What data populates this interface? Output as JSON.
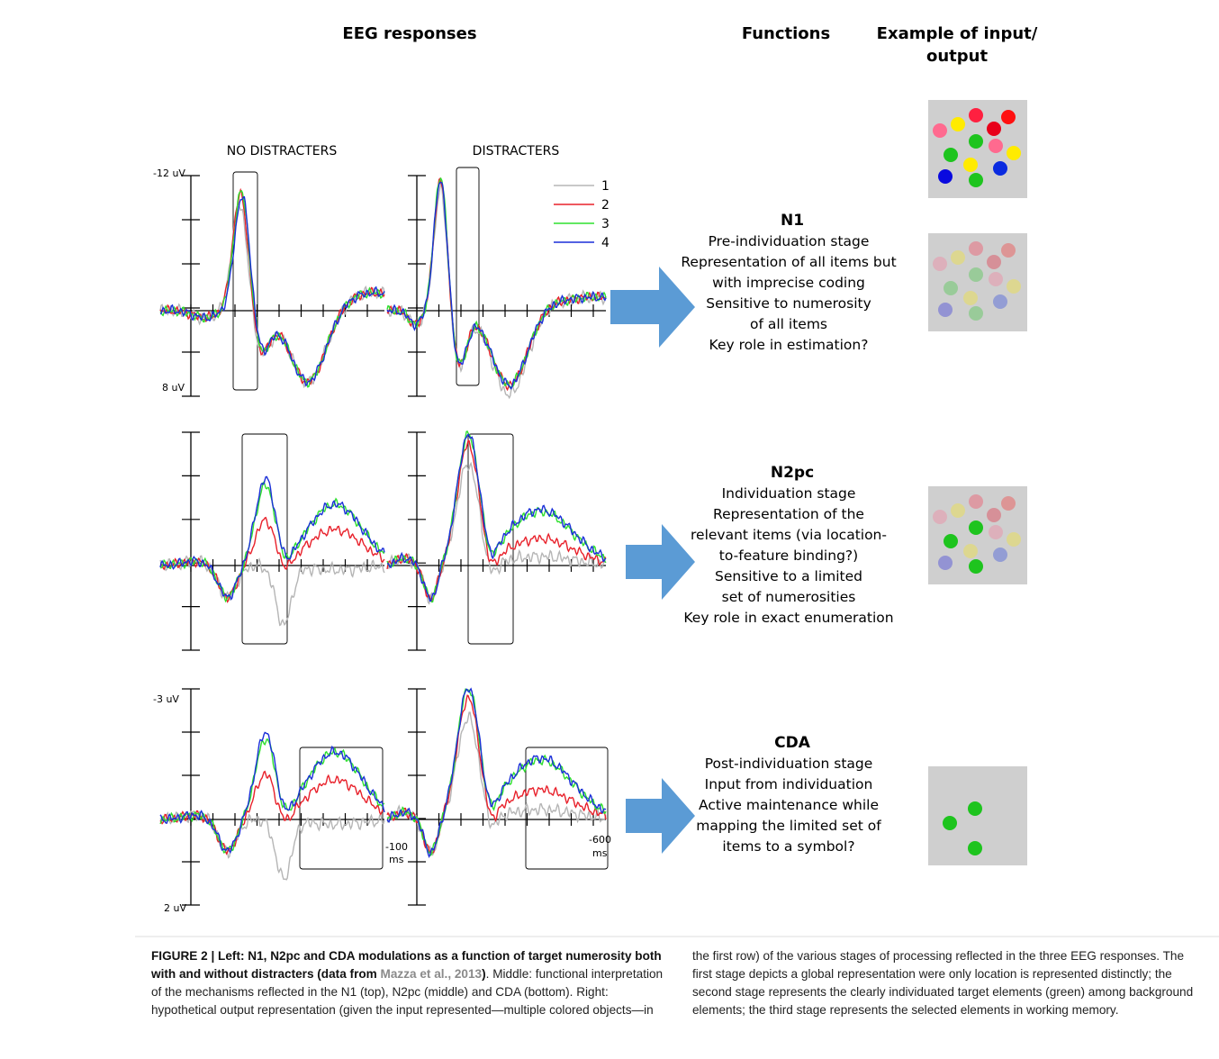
{
  "headers": {
    "eeg": "EEG responses",
    "functions": "Functions",
    "example": [
      "Example of input/",
      "output"
    ]
  },
  "conditions": [
    "NO DISTRACTERS",
    "DISTRACTERS"
  ],
  "axis_labels": {
    "n1_top": "-12 uV",
    "n1_bottom": "8 uV",
    "cda_top": "-3 uV",
    "cda_bottom": "2 uV",
    "x_left": [
      "-100",
      "ms"
    ],
    "x_right": [
      "-600",
      "ms"
    ]
  },
  "legend": [
    {
      "name": "1",
      "color": "#b5b5b5"
    },
    {
      "name": "2",
      "color": "#e8202a"
    },
    {
      "name": "3",
      "color": "#2fe02f"
    },
    {
      "name": "4",
      "color": "#1a2fd8"
    }
  ],
  "functions": [
    {
      "title": "N1",
      "lines": [
        "Pre-individuation stage",
        "Representation of all items but",
        "with imprecise coding",
        "Sensitive to numerosity",
        "of all items",
        "Key role in estimation?"
      ]
    },
    {
      "title": "N2pc",
      "lines": [
        "Individuation stage",
        "Representation of the",
        "relevant items (via location-",
        "to-feature binding?)",
        "Sensitive to a limited",
        "set of numerosities",
        "Key role in exact enumeration"
      ]
    },
    {
      "title": "CDA",
      "lines": [
        "Post-individuation stage",
        "Input from individuation",
        "Active maintenance while",
        "mapping the limited set of",
        "items to a symbol?"
      ]
    }
  ],
  "caption": {
    "bold_start": "FIGURE 2 | Left: N1, N2pc and CDA modulations as a function of target numerosity both with and without distracters (data from ",
    "reference": "Mazza et al., 2013",
    "bold_end": ")",
    "text": ". Middle: functional interpretation of the mechanisms reflected in the N1 (top), N2pc (middle) and CDA (bottom). Right: hypothetical output representation (given the input represented—multiple colored objects—in the first row) of the various stages of processing reflected in the three EEG responses. The first stage depicts a global representation were only location is represented distinctly; the second stage represents the clearly individuated target elements (green) among background elements; the third stage represents the selected elements in working memory."
  }
}
